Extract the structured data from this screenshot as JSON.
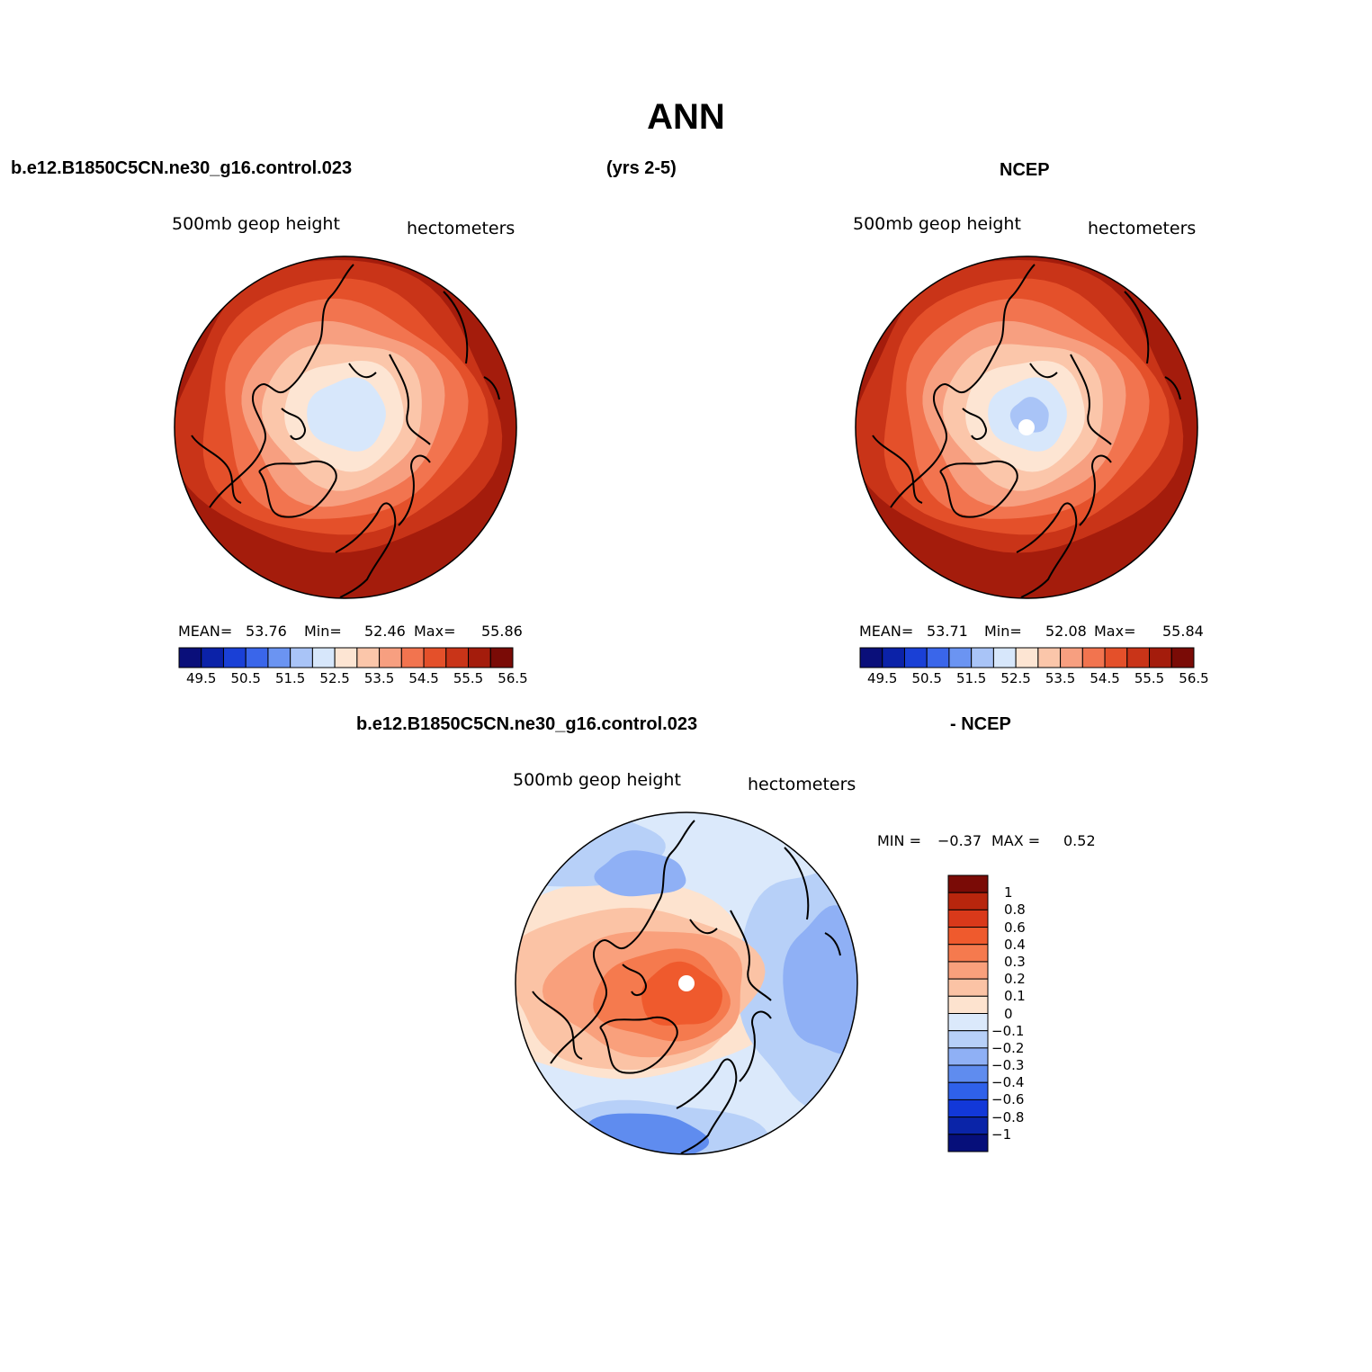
{
  "figure": {
    "title": "ANN",
    "top_left_header": "b.e12.B1850C5CN.ne30_g16.control.023",
    "top_center_header": "(yrs 2-5)",
    "top_right_header": "NCEP",
    "bottom_left_header": "b.e12.B1850C5CN.ne30_g16.control.023",
    "bottom_right_header": "- NCEP"
  },
  "panels": [
    {
      "id": "model",
      "variable": "500mb geop height",
      "units": "hectometers",
      "stats": {
        "mean_label": "MEAN=",
        "mean": "53.76",
        "min_label": "Min=",
        "min": "52.46",
        "max_label": "Max=",
        "max": "55.86"
      },
      "pole_level": 52.75,
      "pole_marker": false,
      "colorbar": {
        "orientation": "horizontal",
        "colors": [
          "#0a0f7a",
          "#0b22a8",
          "#1a40d6",
          "#3a66ea",
          "#6b94f2",
          "#a9c4f7",
          "#d7e7fb",
          "#fde5d3",
          "#fbc6aa",
          "#f79f80",
          "#f2744f",
          "#e4502a",
          "#c93418",
          "#a41c0c",
          "#7a0b06"
        ],
        "tick_labels": [
          "49.5",
          "50.5",
          "51.5",
          "52.5",
          "53.5",
          "54.5",
          "55.5",
          "56.5"
        ]
      }
    },
    {
      "id": "ncep",
      "variable": "500mb geop height",
      "units": "hectometers",
      "stats": {
        "mean_label": "MEAN=",
        "mean": "53.71",
        "min_label": "Min=",
        "min": "52.08",
        "max_label": "Max=",
        "max": "55.84"
      },
      "pole_level": 52.2,
      "pole_marker": true,
      "colorbar": {
        "orientation": "horizontal",
        "colors": [
          "#0a0f7a",
          "#0b22a8",
          "#1a40d6",
          "#3a66ea",
          "#6b94f2",
          "#a9c4f7",
          "#d7e7fb",
          "#fde5d3",
          "#fbc6aa",
          "#f79f80",
          "#f2744f",
          "#e4502a",
          "#c93418",
          "#a41c0c",
          "#7a0b06"
        ],
        "tick_labels": [
          "49.5",
          "50.5",
          "51.5",
          "52.5",
          "53.5",
          "54.5",
          "55.5",
          "56.5"
        ]
      }
    },
    {
      "id": "difference",
      "variable": "500mb geop height",
      "units": "hectometers",
      "stats": {
        "min_label": "MIN =",
        "min": "−0.37",
        "max_label": "MAX =",
        "max": "0.52"
      },
      "pole_marker": true,
      "colorbar": {
        "orientation": "vertical",
        "colors": [
          "#7a0b06",
          "#b8260d",
          "#d9391a",
          "#ef5a2d",
          "#f57a4e",
          "#f9a07c",
          "#fbc3a5",
          "#fde3cf",
          "#dbe9fb",
          "#b7d0f8",
          "#8fb0f5",
          "#5f8cef",
          "#2f61ea",
          "#1238d8",
          "#0a24a8",
          "#060f7a"
        ],
        "tick_labels": [
          "1",
          "0.8",
          "0.6",
          "0.4",
          "0.3",
          "0.2",
          "0.1",
          "0",
          "−0.1",
          "−0.2",
          "−0.3",
          "−0.4",
          "−0.6",
          "−0.8",
          "−1"
        ]
      }
    }
  ]
}
